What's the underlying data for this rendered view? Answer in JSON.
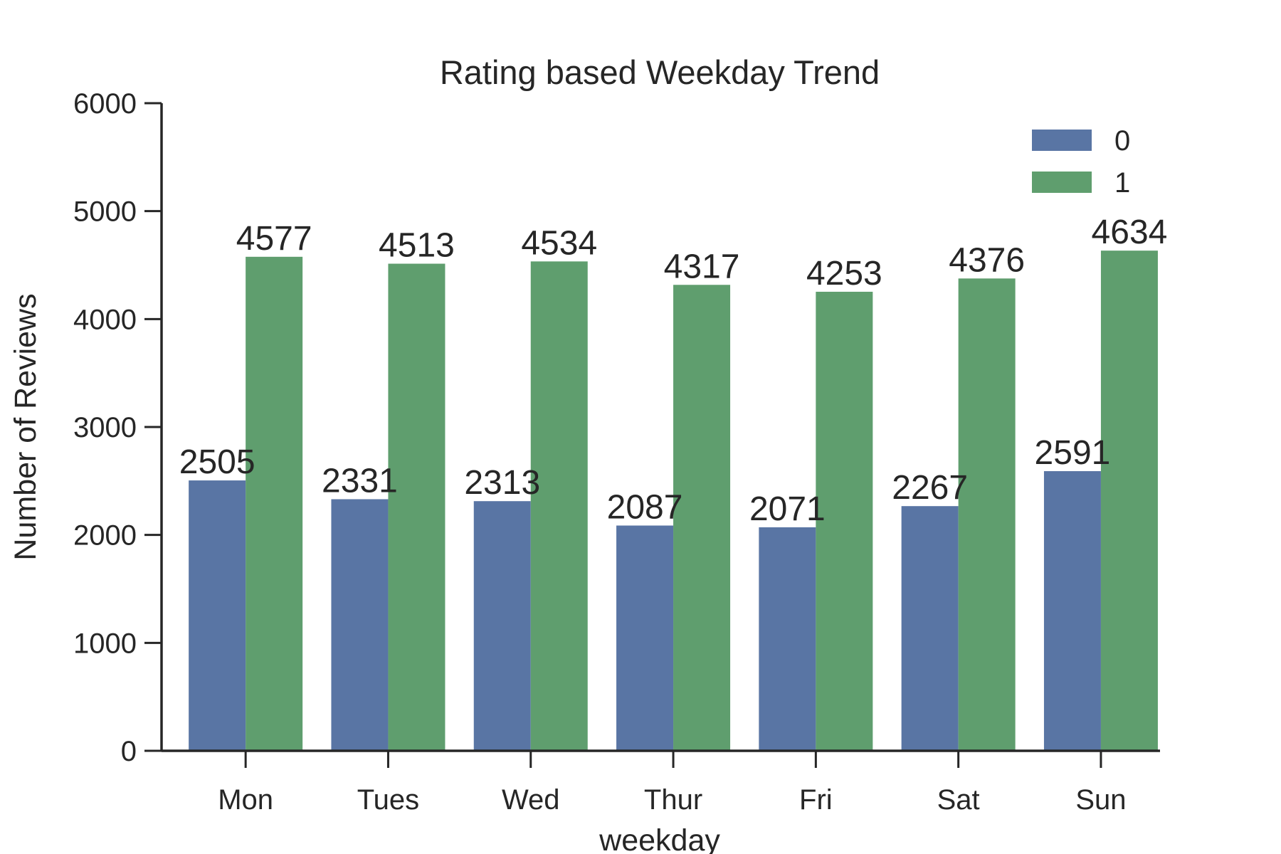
{
  "chart_data": {
    "type": "bar",
    "title": "Rating based Weekday Trend",
    "xlabel": "weekday",
    "ylabel": "Number of Reviews",
    "categories": [
      "Mon",
      "Tues",
      "Wed",
      "Thur",
      "Fri",
      "Sat",
      "Sun"
    ],
    "series": [
      {
        "name": "0",
        "color": "#5975a4",
        "values": [
          2505,
          2331,
          2313,
          2087,
          2071,
          2267,
          2591
        ]
      },
      {
        "name": "1",
        "color": "#5f9e6e",
        "values": [
          4577,
          4513,
          4534,
          4317,
          4253,
          4376,
          4634
        ]
      }
    ],
    "ylim": [
      0,
      6000
    ],
    "yticks": [
      0,
      1000,
      2000,
      3000,
      4000,
      5000,
      6000
    ],
    "grid": false,
    "legend_position": "top-right",
    "data_labels": true
  }
}
